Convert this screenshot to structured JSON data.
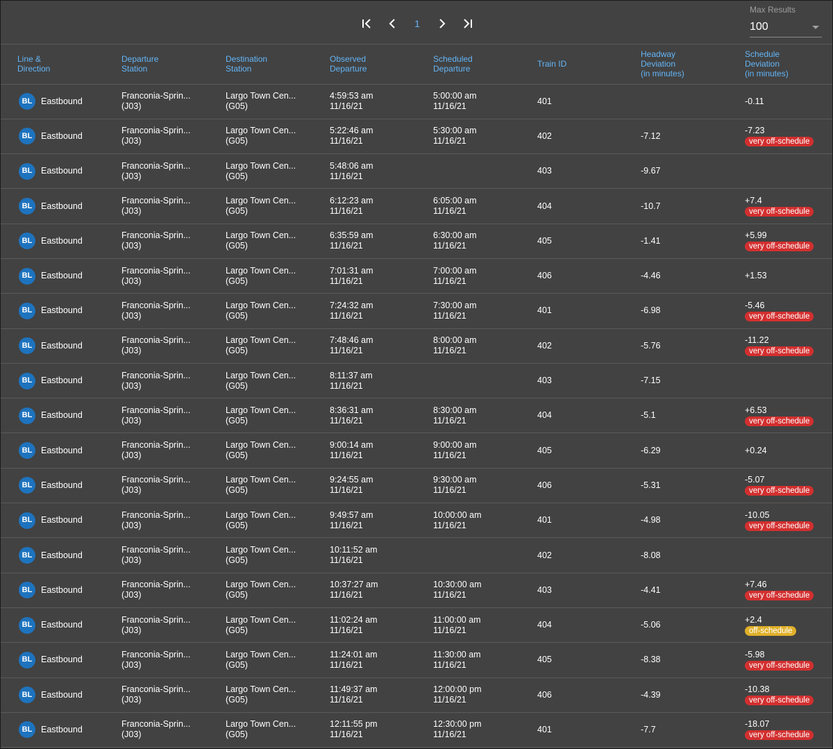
{
  "pagination": {
    "current_page": "1"
  },
  "max_results": {
    "label": "Max Results",
    "value": "100"
  },
  "columns": [
    "Line &\nDirection",
    "Departure\nStation",
    "Destination\nStation",
    "Observed\nDeparture",
    "Scheduled\nDeparture",
    "Train ID",
    "Headway\nDeviation\n(in minutes)",
    "Schedule\nDeviation\n(in minutes)"
  ],
  "colors": {
    "accent": "#64b5f6",
    "line_badge": "#1e73be",
    "very_off": "#d32f2f",
    "off": "#e0b02a",
    "background": "#424242"
  },
  "rows": [
    {
      "line": "BL",
      "direction": "Eastbound",
      "dep_name": "Franconia-Sprin...",
      "dep_code": "(J03)",
      "dest_name": "Largo Town Cen...",
      "dest_code": "(G05)",
      "obs_time": "4:59:53 am",
      "obs_date": "11/16/21",
      "sch_time": "5:00:00 am",
      "sch_date": "11/16/21",
      "train": "401",
      "headway": "",
      "schedule": "-0.11",
      "status": ""
    },
    {
      "line": "BL",
      "direction": "Eastbound",
      "dep_name": "Franconia-Sprin...",
      "dep_code": "(J03)",
      "dest_name": "Largo Town Cen...",
      "dest_code": "(G05)",
      "obs_time": "5:22:46 am",
      "obs_date": "11/16/21",
      "sch_time": "5:30:00 am",
      "sch_date": "11/16/21",
      "train": "402",
      "headway": "-7.12",
      "schedule": "-7.23",
      "status": "very off-schedule"
    },
    {
      "line": "BL",
      "direction": "Eastbound",
      "dep_name": "Franconia-Sprin...",
      "dep_code": "(J03)",
      "dest_name": "Largo Town Cen...",
      "dest_code": "(G05)",
      "obs_time": "5:48:06 am",
      "obs_date": "11/16/21",
      "sch_time": "",
      "sch_date": "",
      "train": "403",
      "headway": "-9.67",
      "schedule": "",
      "status": ""
    },
    {
      "line": "BL",
      "direction": "Eastbound",
      "dep_name": "Franconia-Sprin...",
      "dep_code": "(J03)",
      "dest_name": "Largo Town Cen...",
      "dest_code": "(G05)",
      "obs_time": "6:12:23 am",
      "obs_date": "11/16/21",
      "sch_time": "6:05:00 am",
      "sch_date": "11/16/21",
      "train": "404",
      "headway": "-10.7",
      "schedule": "+7.4",
      "status": "very off-schedule"
    },
    {
      "line": "BL",
      "direction": "Eastbound",
      "dep_name": "Franconia-Sprin...",
      "dep_code": "(J03)",
      "dest_name": "Largo Town Cen...",
      "dest_code": "(G05)",
      "obs_time": "6:35:59 am",
      "obs_date": "11/16/21",
      "sch_time": "6:30:00 am",
      "sch_date": "11/16/21",
      "train": "405",
      "headway": "-1.41",
      "schedule": "+5.99",
      "status": "very off-schedule"
    },
    {
      "line": "BL",
      "direction": "Eastbound",
      "dep_name": "Franconia-Sprin...",
      "dep_code": "(J03)",
      "dest_name": "Largo Town Cen...",
      "dest_code": "(G05)",
      "obs_time": "7:01:31 am",
      "obs_date": "11/16/21",
      "sch_time": "7:00:00 am",
      "sch_date": "11/16/21",
      "train": "406",
      "headway": "-4.46",
      "schedule": "+1.53",
      "status": ""
    },
    {
      "line": "BL",
      "direction": "Eastbound",
      "dep_name": "Franconia-Sprin...",
      "dep_code": "(J03)",
      "dest_name": "Largo Town Cen...",
      "dest_code": "(G05)",
      "obs_time": "7:24:32 am",
      "obs_date": "11/16/21",
      "sch_time": "7:30:00 am",
      "sch_date": "11/16/21",
      "train": "401",
      "headway": "-6.98",
      "schedule": "-5.46",
      "status": "very off-schedule"
    },
    {
      "line": "BL",
      "direction": "Eastbound",
      "dep_name": "Franconia-Sprin...",
      "dep_code": "(J03)",
      "dest_name": "Largo Town Cen...",
      "dest_code": "(G05)",
      "obs_time": "7:48:46 am",
      "obs_date": "11/16/21",
      "sch_time": "8:00:00 am",
      "sch_date": "11/16/21",
      "train": "402",
      "headway": "-5.76",
      "schedule": "-11.22",
      "status": "very off-schedule"
    },
    {
      "line": "BL",
      "direction": "Eastbound",
      "dep_name": "Franconia-Sprin...",
      "dep_code": "(J03)",
      "dest_name": "Largo Town Cen...",
      "dest_code": "(G05)",
      "obs_time": "8:11:37 am",
      "obs_date": "11/16/21",
      "sch_time": "",
      "sch_date": "",
      "train": "403",
      "headway": "-7.15",
      "schedule": "",
      "status": ""
    },
    {
      "line": "BL",
      "direction": "Eastbound",
      "dep_name": "Franconia-Sprin...",
      "dep_code": "(J03)",
      "dest_name": "Largo Town Cen...",
      "dest_code": "(G05)",
      "obs_time": "8:36:31 am",
      "obs_date": "11/16/21",
      "sch_time": "8:30:00 am",
      "sch_date": "11/16/21",
      "train": "404",
      "headway": "-5.1",
      "schedule": "+6.53",
      "status": "very off-schedule"
    },
    {
      "line": "BL",
      "direction": "Eastbound",
      "dep_name": "Franconia-Sprin...",
      "dep_code": "(J03)",
      "dest_name": "Largo Town Cen...",
      "dest_code": "(G05)",
      "obs_time": "9:00:14 am",
      "obs_date": "11/16/21",
      "sch_time": "9:00:00 am",
      "sch_date": "11/16/21",
      "train": "405",
      "headway": "-6.29",
      "schedule": "+0.24",
      "status": ""
    },
    {
      "line": "BL",
      "direction": "Eastbound",
      "dep_name": "Franconia-Sprin...",
      "dep_code": "(J03)",
      "dest_name": "Largo Town Cen...",
      "dest_code": "(G05)",
      "obs_time": "9:24:55 am",
      "obs_date": "11/16/21",
      "sch_time": "9:30:00 am",
      "sch_date": "11/16/21",
      "train": "406",
      "headway": "-5.31",
      "schedule": "-5.07",
      "status": "very off-schedule"
    },
    {
      "line": "BL",
      "direction": "Eastbound",
      "dep_name": "Franconia-Sprin...",
      "dep_code": "(J03)",
      "dest_name": "Largo Town Cen...",
      "dest_code": "(G05)",
      "obs_time": "9:49:57 am",
      "obs_date": "11/16/21",
      "sch_time": "10:00:00 am",
      "sch_date": "11/16/21",
      "train": "401",
      "headway": "-4.98",
      "schedule": "-10.05",
      "status": "very off-schedule"
    },
    {
      "line": "BL",
      "direction": "Eastbound",
      "dep_name": "Franconia-Sprin...",
      "dep_code": "(J03)",
      "dest_name": "Largo Town Cen...",
      "dest_code": "(G05)",
      "obs_time": "10:11:52 am",
      "obs_date": "11/16/21",
      "sch_time": "",
      "sch_date": "",
      "train": "402",
      "headway": "-8.08",
      "schedule": "",
      "status": ""
    },
    {
      "line": "BL",
      "direction": "Eastbound",
      "dep_name": "Franconia-Sprin...",
      "dep_code": "(J03)",
      "dest_name": "Largo Town Cen...",
      "dest_code": "(G05)",
      "obs_time": "10:37:27 am",
      "obs_date": "11/16/21",
      "sch_time": "10:30:00 am",
      "sch_date": "11/16/21",
      "train": "403",
      "headway": "-4.41",
      "schedule": "+7.46",
      "status": "very off-schedule"
    },
    {
      "line": "BL",
      "direction": "Eastbound",
      "dep_name": "Franconia-Sprin...",
      "dep_code": "(J03)",
      "dest_name": "Largo Town Cen...",
      "dest_code": "(G05)",
      "obs_time": "11:02:24 am",
      "obs_date": "11/16/21",
      "sch_time": "11:00:00 am",
      "sch_date": "11/16/21",
      "train": "404",
      "headway": "-5.06",
      "schedule": "+2.4",
      "status": "off-schedule"
    },
    {
      "line": "BL",
      "direction": "Eastbound",
      "dep_name": "Franconia-Sprin...",
      "dep_code": "(J03)",
      "dest_name": "Largo Town Cen...",
      "dest_code": "(G05)",
      "obs_time": "11:24:01 am",
      "obs_date": "11/16/21",
      "sch_time": "11:30:00 am",
      "sch_date": "11/16/21",
      "train": "405",
      "headway": "-8.38",
      "schedule": "-5.98",
      "status": "very off-schedule"
    },
    {
      "line": "BL",
      "direction": "Eastbound",
      "dep_name": "Franconia-Sprin...",
      "dep_code": "(J03)",
      "dest_name": "Largo Town Cen...",
      "dest_code": "(G05)",
      "obs_time": "11:49:37 am",
      "obs_date": "11/16/21",
      "sch_time": "12:00:00 pm",
      "sch_date": "11/16/21",
      "train": "406",
      "headway": "-4.39",
      "schedule": "-10.38",
      "status": "very off-schedule"
    },
    {
      "line": "BL",
      "direction": "Eastbound",
      "dep_name": "Franconia-Sprin...",
      "dep_code": "(J03)",
      "dest_name": "Largo Town Cen...",
      "dest_code": "(G05)",
      "obs_time": "12:11:55 pm",
      "obs_date": "11/16/21",
      "sch_time": "12:30:00 pm",
      "sch_date": "11/16/21",
      "train": "401",
      "headway": "-7.7",
      "schedule": "-18.07",
      "status": "very off-schedule"
    }
  ]
}
